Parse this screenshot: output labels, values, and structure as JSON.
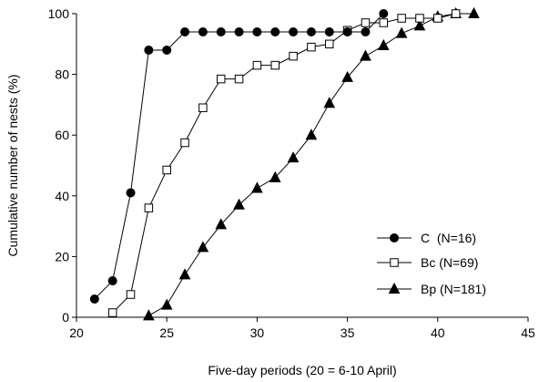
{
  "chart_data": {
    "type": "line",
    "title": "",
    "xlabel": "Five-day periods (20 = 6-10 April)",
    "ylabel": "Cumulative number of nests (%)",
    "xlim": [
      20,
      45
    ],
    "ylim": [
      0,
      100
    ],
    "xticks": [
      20,
      25,
      30,
      35,
      40,
      45
    ],
    "yticks": [
      0,
      20,
      40,
      60,
      80,
      100
    ],
    "grid": false,
    "legend_position": "bottom-right",
    "series": [
      {
        "name": "C  (N=16)",
        "marker": "filled-circle",
        "x": [
          21,
          22,
          23,
          24,
          25,
          26,
          27,
          28,
          29,
          30,
          31,
          32,
          33,
          34,
          35,
          36,
          37
        ],
        "y": [
          6,
          12,
          41,
          88,
          88,
          94,
          94,
          94,
          94,
          94,
          94,
          94,
          94,
          94,
          94,
          94,
          100
        ]
      },
      {
        "name": "Bc (N=69)",
        "marker": "open-square",
        "x": [
          22,
          23,
          24,
          25,
          26,
          27,
          28,
          29,
          30,
          31,
          32,
          33,
          34,
          35,
          36,
          37,
          38,
          39,
          40,
          41
        ],
        "y": [
          1.5,
          7.5,
          36,
          48.5,
          57.5,
          69,
          78.5,
          78.5,
          83,
          83,
          86,
          89,
          90,
          94.5,
          97,
          97,
          98.5,
          98.5,
          98.5,
          100
        ]
      },
      {
        "name": "Bp (N=181)",
        "marker": "filled-triangle",
        "x": [
          24,
          25,
          26,
          27,
          28,
          29,
          30,
          31,
          32,
          33,
          34,
          35,
          36,
          37,
          38,
          39,
          40,
          41,
          42
        ],
        "y": [
          0.5,
          4,
          14,
          23,
          30.5,
          37,
          42.5,
          46,
          52.5,
          60,
          70.5,
          79,
          86,
          89.5,
          93.5,
          96,
          99,
          100,
          100
        ]
      }
    ]
  }
}
